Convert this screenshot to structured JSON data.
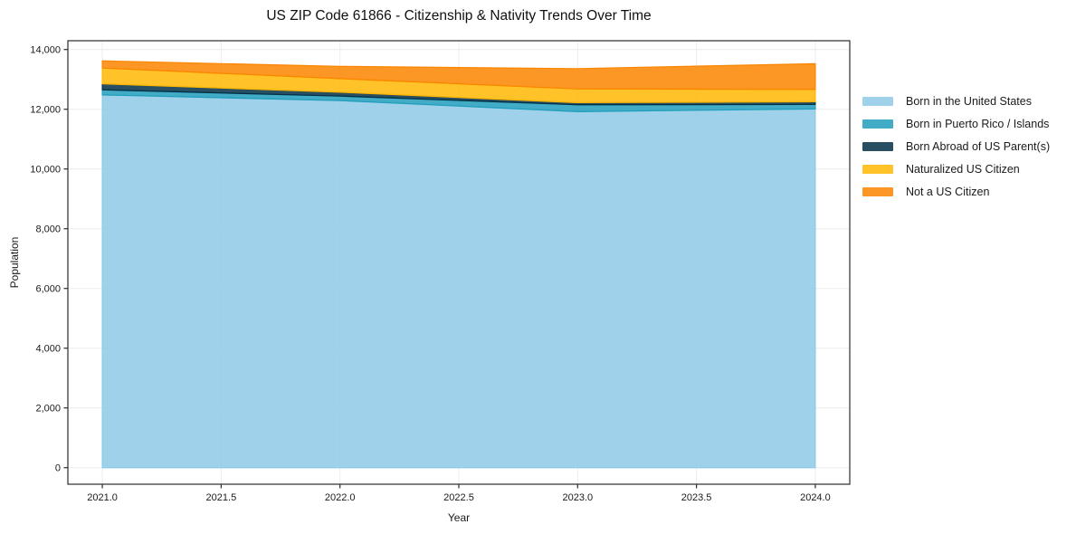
{
  "title": "US ZIP Code 61866 - Citizenship & Nativity Trends Over Time",
  "chart_data": {
    "type": "area",
    "stacked": true,
    "title": "US ZIP Code 61866 - Citizenship & Nativity Trends Over Time",
    "xlabel": "Year",
    "ylabel": "Population",
    "x": [
      2021,
      2022,
      2023,
      2024
    ],
    "series": [
      {
        "name": "Born in the United States",
        "color": "#8ecae6",
        "values": [
          12480,
          12290,
          11920,
          12010
        ]
      },
      {
        "name": "Born in Puerto Rico / Islands",
        "color": "#219ebc",
        "values": [
          170,
          150,
          230,
          150
        ]
      },
      {
        "name": "Born Abroad of US Parent(s)",
        "color": "#023047",
        "values": [
          200,
          130,
          70,
          90
        ]
      },
      {
        "name": "Naturalized US Citizen",
        "color": "#ffb703",
        "values": [
          530,
          455,
          460,
          415
        ]
      },
      {
        "name": "Not a US Citizen",
        "color": "#fb8500",
        "values": [
          240,
          410,
          680,
          860
        ]
      }
    ],
    "totals": [
      13620,
      13435,
      13360,
      13525
    ],
    "xlim": [
      2020.855,
      2024.145
    ],
    "ylim": [
      -554,
      14294
    ],
    "xticks": [
      {
        "v": 2021.0,
        "label": "2021.0"
      },
      {
        "v": 2021.5,
        "label": "2021.5"
      },
      {
        "v": 2022.0,
        "label": "2022.0"
      },
      {
        "v": 2022.5,
        "label": "2022.5"
      },
      {
        "v": 2023.0,
        "label": "2023.0"
      },
      {
        "v": 2023.5,
        "label": "2023.5"
      },
      {
        "v": 2024.0,
        "label": "2024.0"
      }
    ],
    "yticks": [
      {
        "v": 0,
        "label": "0"
      },
      {
        "v": 2000,
        "label": "2,000"
      },
      {
        "v": 4000,
        "label": "4,000"
      },
      {
        "v": 6000,
        "label": "6,000"
      },
      {
        "v": 8000,
        "label": "8,000"
      },
      {
        "v": 10000,
        "label": "10,000"
      },
      {
        "v": 12000,
        "label": "12,000"
      },
      {
        "v": 14000,
        "label": "14,000"
      }
    ],
    "grid": true,
    "grid_color": "#ececec",
    "spine_color": "#2b2b2b",
    "fill_opacity": 0.85,
    "legend_position": "right"
  }
}
